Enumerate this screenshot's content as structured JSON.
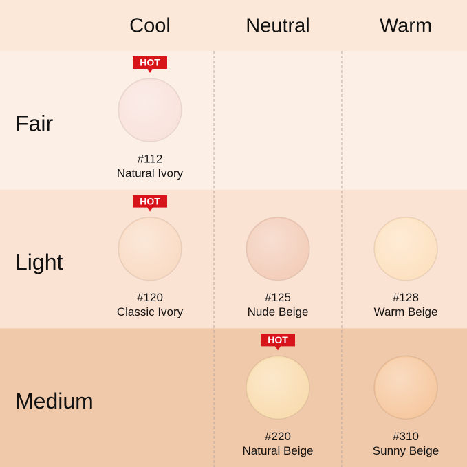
{
  "header": {
    "columns": [
      "Cool",
      "Neutral",
      "Warm"
    ]
  },
  "rows": [
    {
      "label": "Fair",
      "background": "#fcefe6",
      "cells": [
        {
          "badge": "HOT",
          "code": "#112",
          "name": "Natural Ivory",
          "color": "#f9e2dc"
        },
        null,
        null
      ]
    },
    {
      "label": "Light",
      "background": "#fbe3d3",
      "cells": [
        {
          "badge": "HOT",
          "code": "#120",
          "name": "Classic Ivory",
          "color": "#f9dbc4"
        },
        {
          "code": "#125",
          "name": "Nude Beige",
          "color": "#f3cdb9"
        },
        {
          "code": "#128",
          "name": "Warm Beige",
          "color": "#fde1c0"
        }
      ]
    },
    {
      "label": "Medium",
      "background": "#f0c9aa",
      "cells": [
        null,
        {
          "badge": "HOT",
          "code": "#220",
          "name": "Natural Beige",
          "color": "#f9dcaf"
        },
        {
          "code": "#310",
          "name": "Sunny Beige",
          "color": "#f6c89f"
        }
      ]
    }
  ]
}
